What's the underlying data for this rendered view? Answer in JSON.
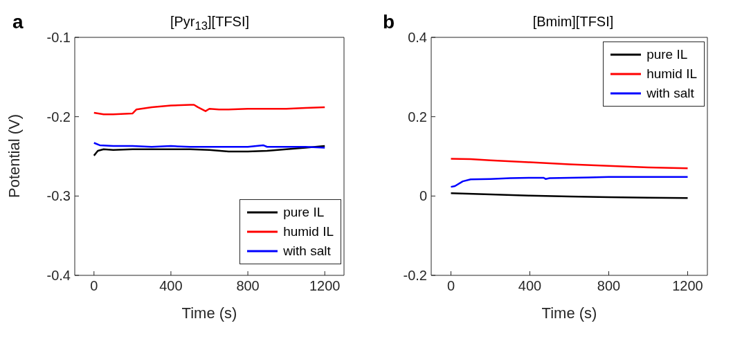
{
  "chart_data": [
    {
      "type": "line",
      "title": "[Pyr$_{13}$][TFSI]",
      "xlabel": "Time (s)",
      "ylabel": "Potential (V)",
      "annotations": [
        "a"
      ],
      "xlim": [
        -100,
        1300
      ],
      "xticks": [
        0,
        400,
        800,
        1200
      ],
      "ylim": [
        -0.4,
        -0.1
      ],
      "yticks": [
        -0.4,
        -0.3,
        -0.2,
        -0.1
      ],
      "legend": "bottom right",
      "grid": false,
      "marker": "none",
      "line_style": "solid",
      "series": [
        {
          "name": "pure IL",
          "color": "#000000",
          "x": [
            0,
            20,
            50,
            100,
            200,
            300,
            400,
            500,
            600,
            700,
            800,
            900,
            1000,
            1100,
            1200
          ],
          "values": [
            -0.249,
            -0.243,
            -0.241,
            -0.242,
            -0.241,
            -0.241,
            -0.241,
            -0.241,
            -0.242,
            -0.244,
            -0.244,
            -0.243,
            -0.241,
            -0.239,
            -0.237
          ]
        },
        {
          "name": "humid IL",
          "color": "#ff0000",
          "x": [
            0,
            50,
            100,
            200,
            220,
            300,
            400,
            500,
            520,
            540,
            580,
            600,
            650,
            700,
            800,
            900,
            1000,
            1100,
            1200
          ],
          "values": [
            -0.195,
            -0.197,
            -0.197,
            -0.196,
            -0.191,
            -0.188,
            -0.186,
            -0.185,
            -0.185,
            -0.188,
            -0.193,
            -0.19,
            -0.191,
            -0.191,
            -0.19,
            -0.19,
            -0.19,
            -0.189,
            -0.188
          ]
        },
        {
          "name": "with salt",
          "color": "#0000ff",
          "x": [
            0,
            30,
            100,
            200,
            300,
            400,
            500,
            600,
            700,
            800,
            880,
            900,
            1000,
            1100,
            1200
          ],
          "values": [
            -0.233,
            -0.236,
            -0.237,
            -0.237,
            -0.238,
            -0.237,
            -0.238,
            -0.238,
            -0.238,
            -0.238,
            -0.236,
            -0.238,
            -0.238,
            -0.238,
            -0.239
          ]
        }
      ]
    },
    {
      "type": "line",
      "title": "[Bmim][TFSI]",
      "xlabel": "Time (s)",
      "annotations": [
        "b"
      ],
      "xlim": [
        -100,
        1300
      ],
      "xticks": [
        0,
        400,
        800,
        1200
      ],
      "ylim": [
        -0.2,
        0.4
      ],
      "yticks": [
        -0.2,
        0,
        0.2,
        0.4
      ],
      "legend": "top right",
      "grid": false,
      "marker": "none",
      "line_style": "solid",
      "series": [
        {
          "name": "pure IL",
          "color": "#000000",
          "x": [
            0,
            200,
            400,
            600,
            800,
            1000,
            1200
          ],
          "values": [
            0.007,
            0.004,
            0.001,
            -0.001,
            -0.003,
            -0.004,
            -0.005
          ]
        },
        {
          "name": "humid IL",
          "color": "#ff0000",
          "x": [
            0,
            100,
            200,
            400,
            600,
            800,
            1000,
            1200
          ],
          "values": [
            0.094,
            0.093,
            0.09,
            0.085,
            0.08,
            0.076,
            0.072,
            0.07
          ]
        },
        {
          "name": "with salt",
          "color": "#0000ff",
          "x": [
            0,
            20,
            60,
            100,
            200,
            300,
            400,
            470,
            480,
            500,
            600,
            700,
            800,
            1000,
            1200
          ],
          "values": [
            0.023,
            0.025,
            0.037,
            0.042,
            0.043,
            0.045,
            0.046,
            0.046,
            0.043,
            0.045,
            0.046,
            0.047,
            0.048,
            0.048,
            0.048
          ]
        }
      ]
    }
  ]
}
